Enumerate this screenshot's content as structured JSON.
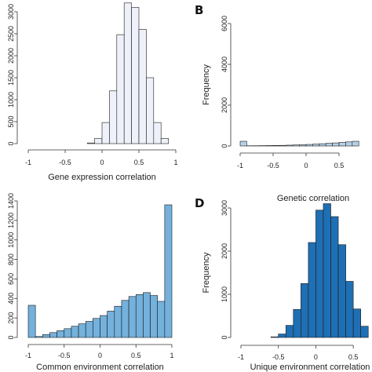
{
  "chart_data": [
    {
      "type": "bar",
      "panel_label": "",
      "title": "",
      "xlabel": "Gene expression correlation",
      "ylabel": "",
      "xlim": [
        -1,
        1
      ],
      "ylim": [
        0,
        3000
      ],
      "xticks": [
        "-1",
        "-0.5",
        "0",
        "0.5",
        "1"
      ],
      "yticks": [
        "0",
        "500",
        "1000",
        "1500",
        "2000",
        "2500",
        "3000"
      ],
      "bin_edges": [
        -0.2,
        -0.1,
        0.0,
        0.1,
        0.2,
        0.3,
        0.4,
        0.5,
        0.6,
        0.7,
        0.8,
        0.9
      ],
      "values": [
        15,
        120,
        480,
        1200,
        2480,
        3200,
        3100,
        2600,
        1500,
        480,
        120
      ],
      "fill": "#eef1f9"
    },
    {
      "type": "bar",
      "panel_label": "B",
      "title": "",
      "xlabel": "Genetic correlation",
      "ylabel": "Frequency",
      "xlim": [
        -1,
        1
      ],
      "ylim": [
        0,
        6000
      ],
      "xticks": [
        "-1",
        "-0.5",
        "0",
        "0.5"
      ],
      "yticks": [
        "0",
        "2000",
        "4000",
        "6000"
      ],
      "bin_edges": [
        -1.0,
        -0.9,
        -0.8,
        -0.7,
        -0.6,
        -0.5,
        -0.4,
        -0.3,
        -0.2,
        -0.1,
        0.0,
        0.1,
        0.2,
        0.3,
        0.4,
        0.5,
        0.6,
        0.7,
        0.8
      ],
      "values": [
        230,
        10,
        12,
        15,
        20,
        25,
        30,
        40,
        50,
        60,
        75,
        90,
        110,
        130,
        150,
        175,
        200,
        230
      ],
      "fill": "#b6cfe6"
    },
    {
      "type": "bar",
      "panel_label": "",
      "title": "",
      "xlabel": "Common environment correlation",
      "ylabel": "",
      "xlim": [
        -1,
        1
      ],
      "ylim": [
        0,
        1400
      ],
      "xticks": [
        "-1",
        "-0.5",
        "0",
        "0.5",
        "1"
      ],
      "yticks": [
        "0",
        "200",
        "400",
        "600",
        "800",
        "1000",
        "1200",
        "1400"
      ],
      "bin_edges": [
        -1.0,
        -0.9,
        -0.8,
        -0.7,
        -0.6,
        -0.5,
        -0.4,
        -0.3,
        -0.2,
        -0.1,
        0.0,
        0.1,
        0.2,
        0.3,
        0.4,
        0.5,
        0.6,
        0.7,
        0.8,
        0.9,
        1.0
      ],
      "values": [
        330,
        10,
        30,
        50,
        70,
        90,
        115,
        140,
        165,
        195,
        225,
        270,
        320,
        380,
        420,
        440,
        460,
        430,
        370,
        1360
      ],
      "fill": "#74b1dc"
    },
    {
      "type": "bar",
      "panel_label": "D",
      "title": "",
      "xlabel": "Unique environment correlation",
      "ylabel": "Frequency",
      "xlim": [
        -1,
        0.75
      ],
      "ylim": [
        0,
        3000
      ],
      "xticks": [
        "-1",
        "-0.5",
        "0",
        "0.5"
      ],
      "yticks": [
        "0",
        "1000",
        "2000",
        "3000"
      ],
      "bin_edges": [
        -0.6,
        -0.5,
        -0.4,
        -0.3,
        -0.2,
        -0.1,
        0.0,
        0.1,
        0.2,
        0.3,
        0.4,
        0.5,
        0.6,
        0.7
      ],
      "values": [
        15,
        80,
        280,
        650,
        1250,
        2200,
        2950,
        3100,
        2800,
        2150,
        1300,
        660,
        260
      ],
      "fill": "#1f6fb4"
    }
  ]
}
